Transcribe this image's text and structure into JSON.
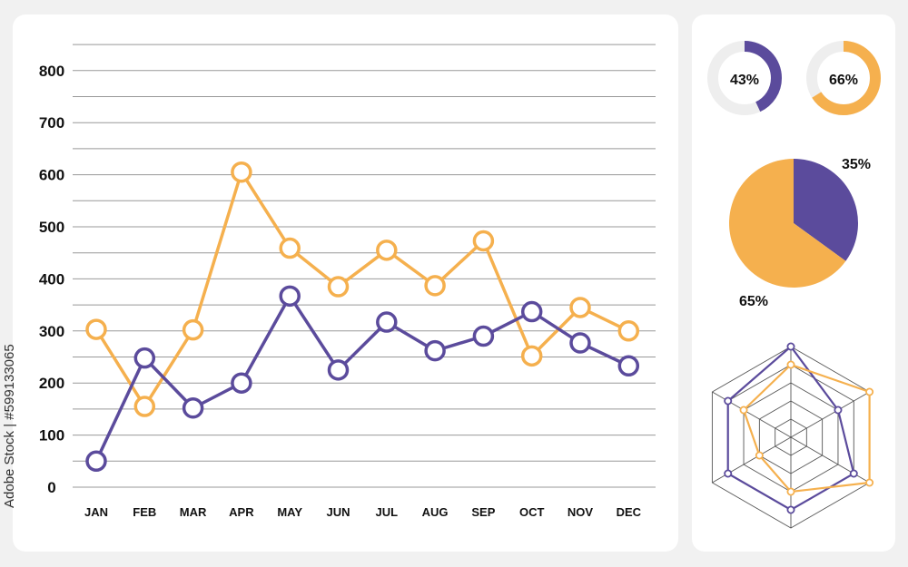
{
  "watermark": "Adobe Stock | #599133065",
  "colors": {
    "purple": "#5b4b9c",
    "orange": "#f5b04e",
    "grid": "#999999",
    "track": "#eeeeee"
  },
  "chart_data": [
    {
      "type": "line",
      "categories": [
        "JAN",
        "FEB",
        "MAR",
        "APR",
        "MAY",
        "JUN",
        "JUL",
        "AUG",
        "SEP",
        "OCT",
        "NOV",
        "DEC"
      ],
      "y_ticks": [
        "0",
        "100",
        "200",
        "300",
        "400",
        "500",
        "600",
        "700",
        "800"
      ],
      "ylim": [
        0,
        850
      ],
      "grid": true,
      "series": [
        {
          "color": "orange",
          "values": [
            303,
            155,
            302,
            605,
            459,
            385,
            455,
            387,
            473,
            252,
            345,
            300
          ]
        },
        {
          "color": "purple",
          "values": [
            50,
            248,
            152,
            200,
            367,
            225,
            317,
            262,
            290,
            337,
            277,
            233
          ]
        }
      ]
    },
    {
      "type": "donut",
      "value": 43,
      "label": "43%",
      "color": "purple"
    },
    {
      "type": "donut",
      "value": 66,
      "label": "66%",
      "color": "orange"
    },
    {
      "type": "pie",
      "slices": [
        {
          "label": "35%",
          "value": 35,
          "color": "purple"
        },
        {
          "label": "65%",
          "value": 65,
          "color": "orange"
        }
      ]
    },
    {
      "type": "radar",
      "axes": 6,
      "max": 5,
      "series": [
        {
          "color": "purple",
          "values": [
            5,
            3,
            4,
            4,
            4,
            4
          ]
        },
        {
          "color": "orange",
          "values": [
            4,
            5,
            5,
            3,
            2,
            3
          ]
        }
      ]
    }
  ]
}
